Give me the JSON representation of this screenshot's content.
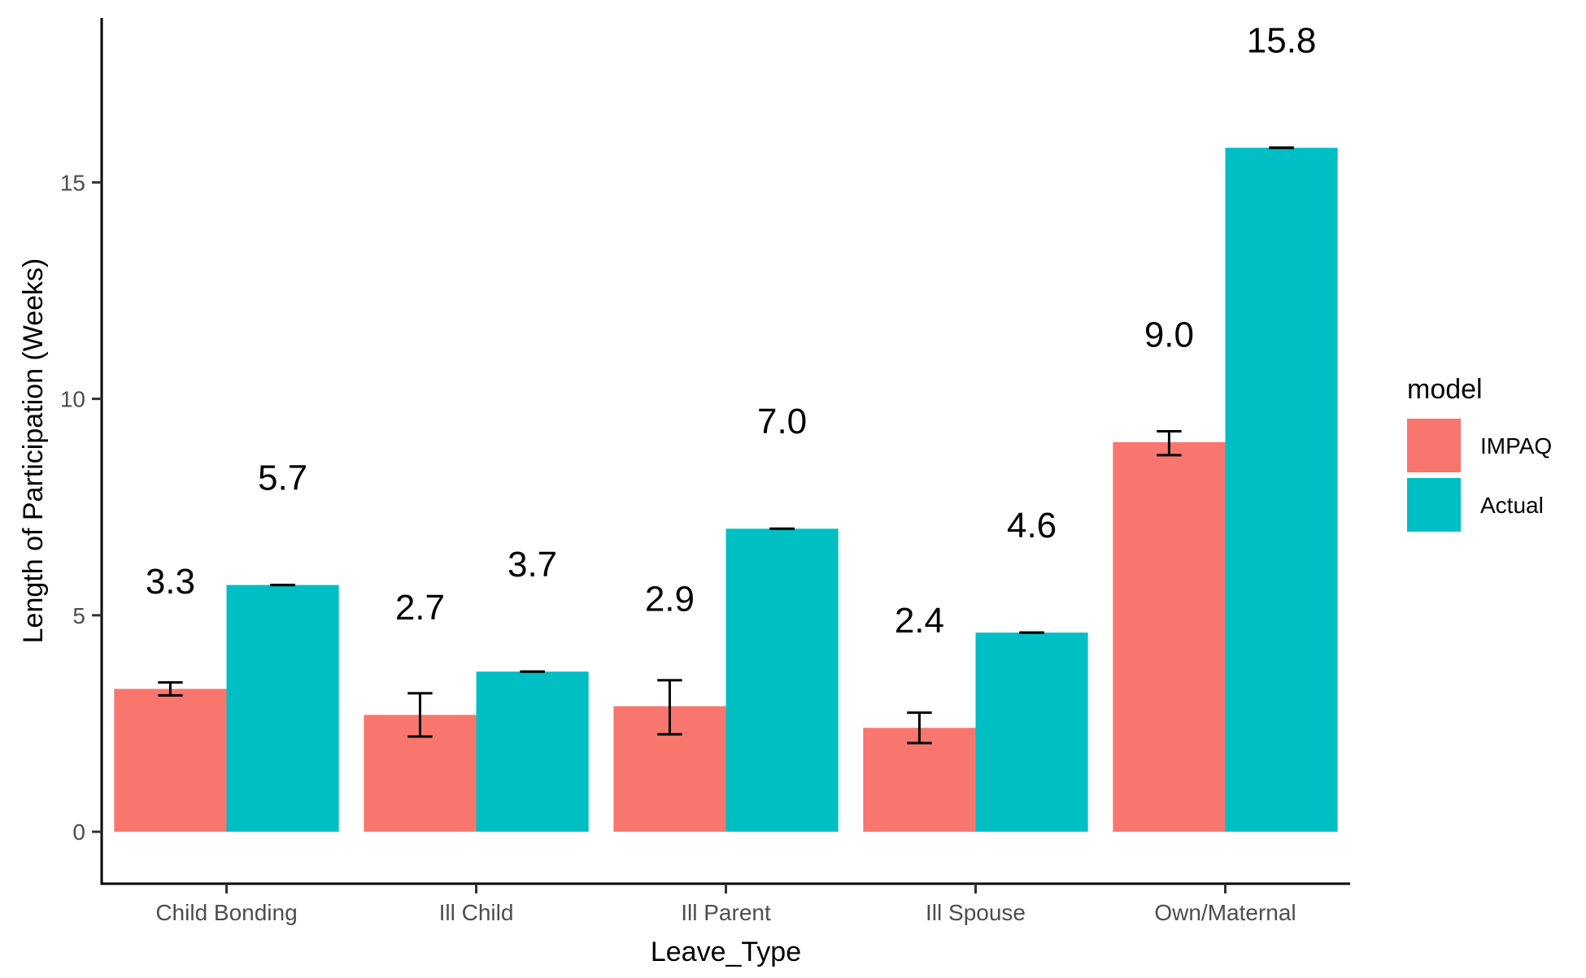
{
  "chart_data": {
    "type": "bar",
    "xlabel": "Leave_Type",
    "ylabel": "Length of Participation (Weeks)",
    "ylim": [
      -1.2,
      18.8
    ],
    "yticks": [
      0,
      5,
      10,
      15
    ],
    "categories": [
      "Child Bonding",
      "Ill Child",
      "Ill Parent",
      "Ill Spouse",
      "Own/Maternal"
    ],
    "legend": {
      "title": "model",
      "position": "right"
    },
    "series": [
      {
        "name": "IMPAQ",
        "color": "#F8766D",
        "values": [
          3.3,
          2.7,
          2.9,
          2.4,
          9.0
        ],
        "labels": [
          "3.3",
          "2.7",
          "2.9",
          "2.4",
          "9.0"
        ],
        "error_low": [
          3.15,
          2.2,
          2.25,
          2.05,
          8.7
        ],
        "error_high": [
          3.45,
          3.2,
          3.5,
          2.75,
          9.25
        ]
      },
      {
        "name": "Actual",
        "color": "#00BFC4",
        "values": [
          5.7,
          3.7,
          7.0,
          4.6,
          15.8
        ],
        "labels": [
          "5.7",
          "3.7",
          "7.0",
          "4.6",
          "15.8"
        ],
        "error_low": [
          5.7,
          3.7,
          7.0,
          4.6,
          15.8
        ],
        "error_high": [
          5.7,
          3.7,
          7.0,
          4.6,
          15.8
        ]
      }
    ],
    "grid": false
  }
}
